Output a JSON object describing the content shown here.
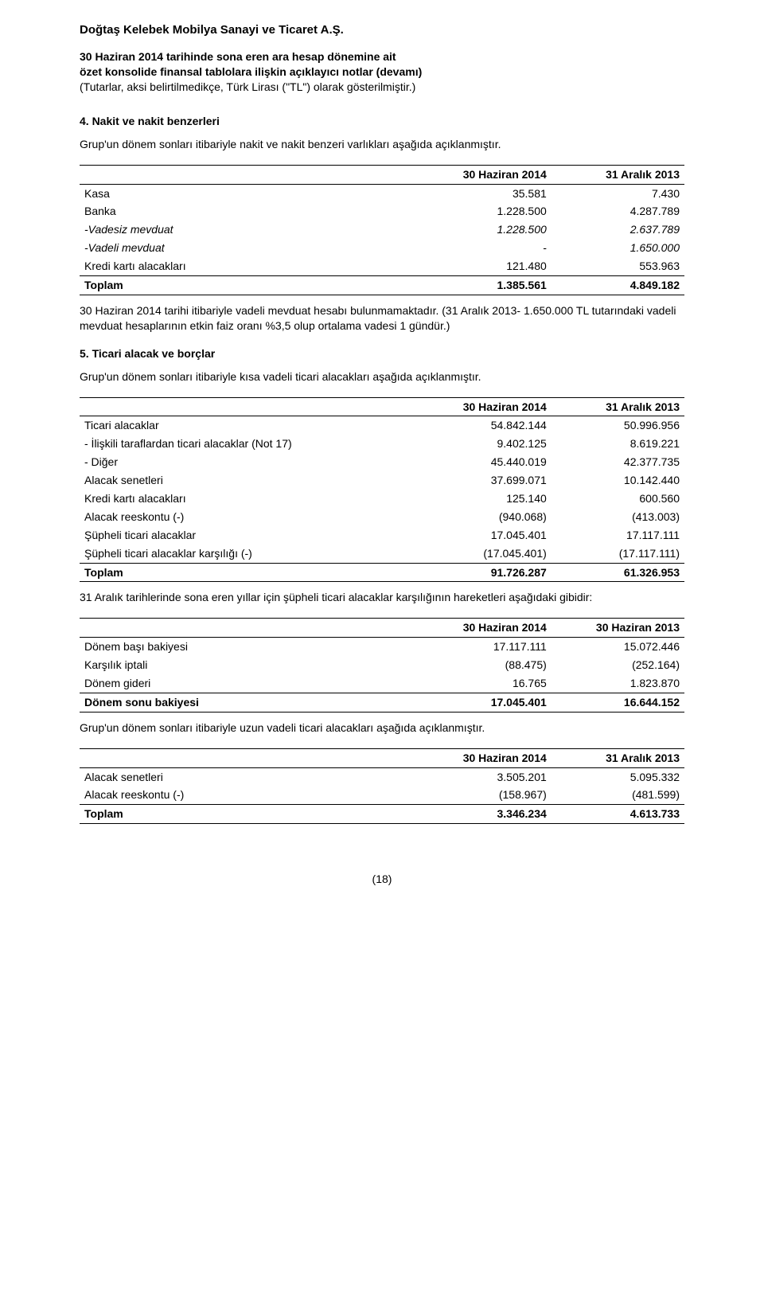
{
  "header": {
    "company": "Doğtaş Kelebek Mobilya Sanayi ve Ticaret A.Ş.",
    "subtitle_line1": "30 Haziran 2014 tarihinde sona eren ara hesap dönemine ait",
    "subtitle_line2": "özet konsolide finansal tablolara ilişkin açıklayıcı notlar (devamı)",
    "subtitle_line3_plain": "(Tutarlar, aksi belirtilmedikçe, Türk Lirası (\"TL\") olarak gösterilmiştir.)"
  },
  "sec4": {
    "title": "4.    Nakit ve nakit benzerleri",
    "intro": "Grup'un dönem sonları itibariyle nakit ve nakit benzeri varlıkları aşağıda açıklanmıştır.",
    "col1": "30 Haziran 2014",
    "col2": "31 Aralık 2013",
    "rows": [
      {
        "label": "Kasa",
        "v1": "35.581",
        "v2": "7.430"
      },
      {
        "label": "Banka",
        "v1": "1.228.500",
        "v2": "4.287.789"
      },
      {
        "label": "-Vadesiz mevduat",
        "italic": true,
        "v1": "1.228.500",
        "v2": "2.637.789"
      },
      {
        "label": "-Vadeli mevduat",
        "italic": true,
        "v1": "-",
        "v2": "1.650.000"
      },
      {
        "label": "Kredi kartı alacakları",
        "v1": "121.480",
        "v2": "553.963"
      }
    ],
    "total": {
      "label": "Toplam",
      "v1": "1.385.561",
      "v2": "4.849.182"
    },
    "footnote": "30 Haziran 2014 tarihi itibariyle vadeli mevduat hesabı bulunmamaktadır. (31 Aralık 2013- 1.650.000 TL tutarındaki vadeli mevduat hesaplarının etkin faiz oranı %3,5 olup ortalama vadesi 1 gündür.)"
  },
  "sec5": {
    "title": "5.    Ticari alacak ve borçlar",
    "intro": "Grup'un dönem sonları itibariyle kısa vadeli ticari alacakları aşağıda açıklanmıştır.",
    "col1": "30 Haziran 2014",
    "col2": "31 Aralık 2013",
    "rows": [
      {
        "label": "Ticari alacaklar",
        "v1": "54.842.144",
        "v2": "50.996.956"
      },
      {
        "label": "- İlişkili taraflardan ticari alacaklar (Not 17)",
        "v1": "9.402.125",
        "v2": "8.619.221"
      },
      {
        "label": "- Diğer",
        "v1": "45.440.019",
        "v2": "42.377.735"
      },
      {
        "label": "Alacak senetleri",
        "v1": "37.699.071",
        "v2": "10.142.440"
      },
      {
        "label": "Kredi kartı alacakları",
        "v1": "125.140",
        "v2": "600.560"
      },
      {
        "label": "Alacak reeskontu (-)",
        "v1": "(940.068)",
        "v2": "(413.003)"
      },
      {
        "label": "Şüpheli ticari alacaklar",
        "v1": "17.045.401",
        "v2": "17.117.111"
      },
      {
        "label": "Şüpheli ticari alacaklar karşılığı (-)",
        "v1": "(17.045.401)",
        "v2": "(17.117.111)"
      }
    ],
    "total": {
      "label": "Toplam",
      "v1": "91.726.287",
      "v2": "61.326.953"
    },
    "footnote": "31 Aralık tarihlerinde sona eren yıllar için şüpheli ticari alacaklar karşılığının hareketleri aşağıdaki gibidir:"
  },
  "sec5move": {
    "col1": "30 Haziran 2014",
    "col2": "30 Haziran 2013",
    "rows": [
      {
        "label": "Dönem başı bakiyesi",
        "v1": "17.117.111",
        "v2": "15.072.446"
      },
      {
        "label": "Karşılık iptali",
        "v1": "(88.475)",
        "v2": "(252.164)"
      },
      {
        "label": "Dönem gideri",
        "v1": "16.765",
        "v2": "1.823.870"
      }
    ],
    "total": {
      "label": "Dönem sonu bakiyesi",
      "v1": "17.045.401",
      "v2": "16.644.152"
    },
    "footnote": "Grup'un dönem sonları itibariyle uzun vadeli ticari alacakları aşağıda açıklanmıştır."
  },
  "sec5long": {
    "col1": "30 Haziran 2014",
    "col2": "31 Aralık 2013",
    "rows": [
      {
        "label": "Alacak senetleri",
        "v1": "3.505.201",
        "v2": "5.095.332"
      },
      {
        "label": "Alacak reeskontu (-)",
        "v1": "(158.967)",
        "v2": "(481.599)"
      }
    ],
    "total": {
      "label": "Toplam",
      "v1": "3.346.234",
      "v2": "4.613.733"
    }
  },
  "page_no": "(18)"
}
